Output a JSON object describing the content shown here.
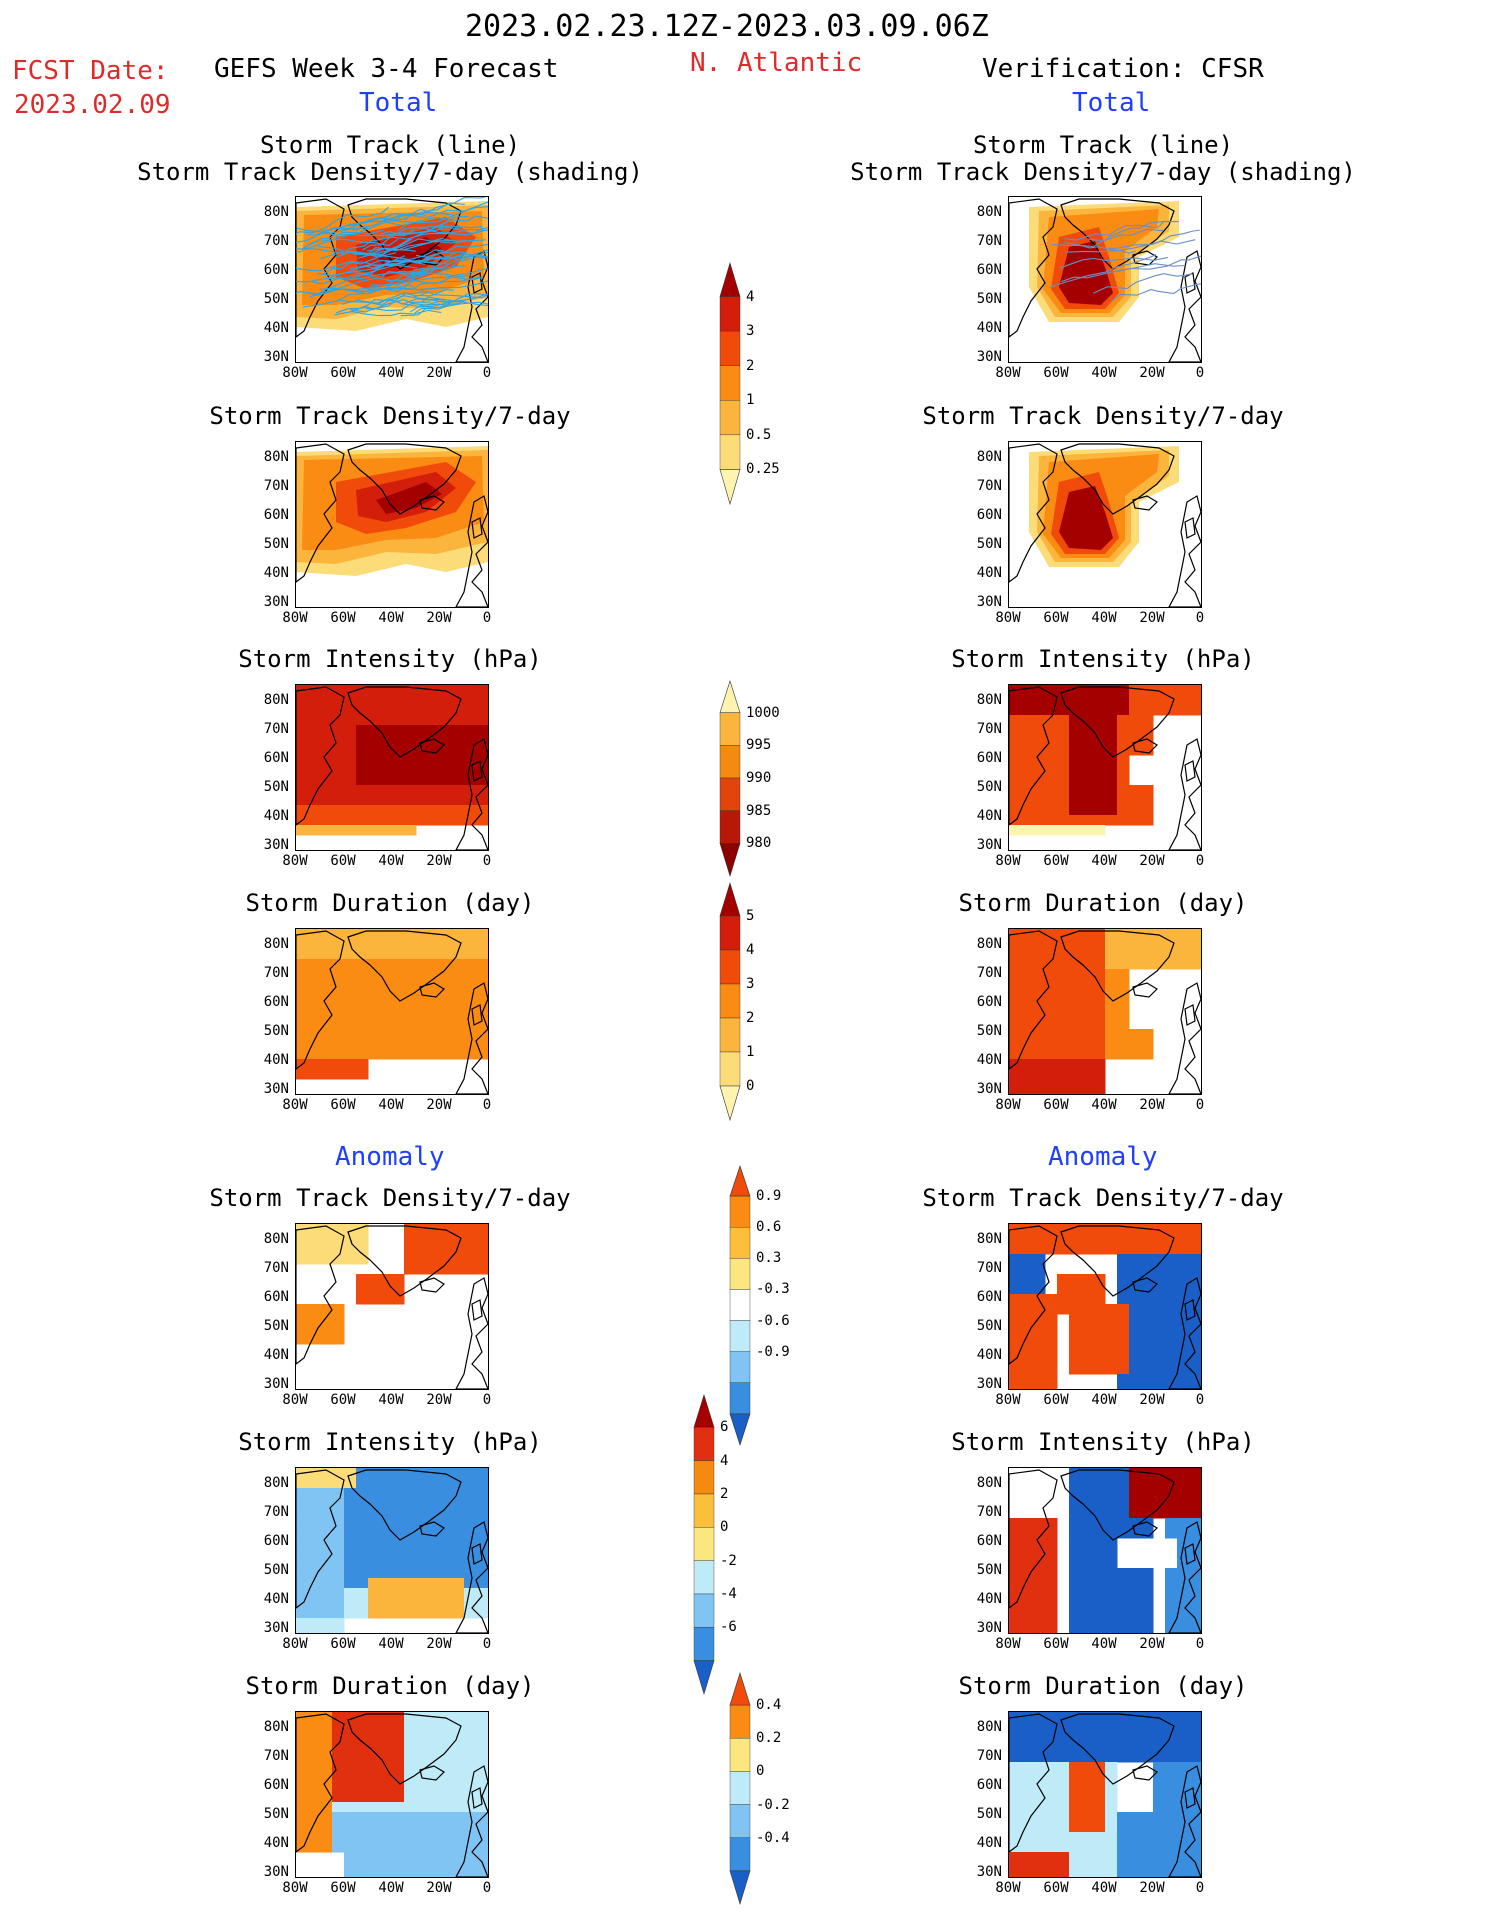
{
  "header": {
    "period": "2023.02.23.12Z-2023.03.09.06Z",
    "fcst_label": "FCST Date:",
    "fcst_date": "2023.02.09",
    "model_title": "GEFS Week 3-4 Forecast",
    "region": "N. Atlantic",
    "verification": "Verification: CFSR",
    "total_left": "Total",
    "total_right": "Total",
    "anomaly_left": "Anomaly",
    "anomaly_right": "Anomaly"
  },
  "panel_titles": {
    "track_line": "Storm Track (line)",
    "track_shading": "Storm Track Density/7-day (shading)",
    "density": "Storm Track Density/7-day",
    "intensity": "Storm Intensity (hPa)",
    "duration": "Storm Duration (day)"
  },
  "axes": {
    "lat_labels": [
      "80N",
      "70N",
      "60N",
      "50N",
      "40N",
      "30N"
    ],
    "lon_labels": [
      "80W",
      "60W",
      "40W",
      "20W",
      "0"
    ]
  },
  "colorbars": {
    "density": {
      "labels": [
        "4",
        "3",
        "2",
        "1",
        "0.5",
        "0.25"
      ],
      "colors": [
        "#a50000",
        "#d21e0a",
        "#f04b0a",
        "#fa8c14",
        "#fbb43c",
        "#fcdc78",
        "#fff3b0"
      ]
    },
    "intensity": {
      "labels": [
        "1000",
        "995",
        "990",
        "985",
        "980"
      ],
      "colors": [
        "#fff3b0",
        "#fbb43c",
        "#f58a10",
        "#e2450c",
        "#b81808",
        "#8c0000"
      ]
    },
    "duration": {
      "labels": [
        "5",
        "4",
        "3",
        "2",
        "1",
        "0"
      ],
      "colors": [
        "#a50000",
        "#d21e0a",
        "#f04b0a",
        "#fa8c14",
        "#fbb43c",
        "#fcdc78",
        "#fff3b0"
      ]
    },
    "anom_density": {
      "labels": [
        "0.9",
        "0.6",
        "0.3",
        "-0.3",
        "-0.6",
        "-0.9"
      ],
      "colors": [
        "#f04b0a",
        "#fa8c14",
        "#fbbf3c",
        "#fce680",
        "#ffffff",
        "#bfeaf8",
        "#7fc4f2",
        "#3a8ee0",
        "#1a5fc8"
      ]
    },
    "anom_intensity": {
      "labels": [
        "6",
        "4",
        "2",
        "0",
        "-2",
        "-4",
        "-6"
      ],
      "colors": [
        "#a50000",
        "#e03010",
        "#f58a10",
        "#fbbf3c",
        "#fce680",
        "#bfeaf8",
        "#7fc4f2",
        "#3a8ee0",
        "#1a5fc8"
      ]
    },
    "anom_duration": {
      "labels": [
        "0.4",
        "0.2",
        "0",
        "-0.2",
        "-0.4"
      ],
      "colors": [
        "#f04b0a",
        "#fa8c14",
        "#fce680",
        "#bfeaf8",
        "#7fc4f2",
        "#3a8ee0",
        "#1a5fc8"
      ]
    }
  },
  "colors": {
    "track_forecast": "#2aa6e8",
    "track_cfsr": "#6a8ec8"
  }
}
